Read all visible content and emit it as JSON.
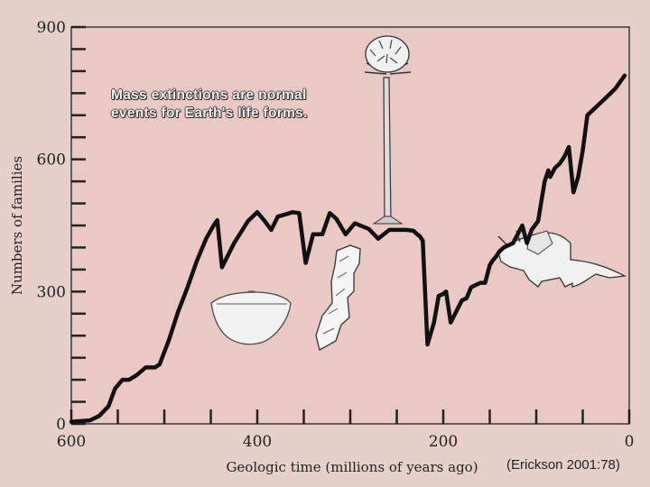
{
  "chart_data": {
    "type": "line",
    "caption_lines": [
      "Mass extinctions are normal",
      "events for Earth's life forms."
    ],
    "citation": "(Erickson 2001:78)",
    "xlabel": "Geologic time (millions of years ago)",
    "ylabel": "Numbers of families",
    "xlim": [
      600,
      0
    ],
    "ylim": [
      0,
      900
    ],
    "x_ticks": [
      600,
      400,
      200,
      0
    ],
    "y_ticks": [
      0,
      300,
      600,
      900
    ],
    "illustrations": [
      "tree",
      "trilobite",
      "fossil-coral",
      "triceratops"
    ],
    "series": [
      {
        "name": "Number of families",
        "x": [
          600,
          580,
          570,
          560,
          553,
          545,
          538,
          530,
          520,
          510,
          505,
          495,
          485,
          475,
          465,
          455,
          447,
          443,
          438,
          425,
          410,
          400,
          392,
          385,
          378,
          370,
          362,
          355,
          348,
          340,
          330,
          322,
          315,
          305,
          295,
          280,
          270,
          258,
          248,
          243,
          240,
          232,
          228,
          225,
          222,
          217,
          210,
          205,
          200,
          197,
          192,
          180,
          175,
          170,
          160,
          155,
          150,
          147,
          143,
          140,
          135,
          125,
          115,
          110,
          105,
          98,
          91,
          87,
          85,
          80,
          75,
          70,
          65,
          60,
          55,
          50,
          45,
          35,
          25,
          15,
          5
        ],
        "values": [
          5,
          8,
          18,
          40,
          80,
          100,
          100,
          110,
          128,
          128,
          135,
          190,
          255,
          310,
          370,
          420,
          450,
          462,
          355,
          410,
          460,
          480,
          460,
          440,
          470,
          475,
          480,
          478,
          365,
          430,
          430,
          478,
          465,
          430,
          455,
          442,
          420,
          440,
          440,
          440,
          440,
          438,
          430,
          425,
          415,
          180,
          230,
          290,
          295,
          300,
          230,
          280,
          285,
          310,
          320,
          320,
          360,
          370,
          380,
          390,
          400,
          410,
          450,
          410,
          440,
          460,
          550,
          575,
          560,
          580,
          590,
          605,
          628,
          525,
          560,
          620,
          700,
          720,
          740,
          760,
          790
        ]
      }
    ]
  }
}
